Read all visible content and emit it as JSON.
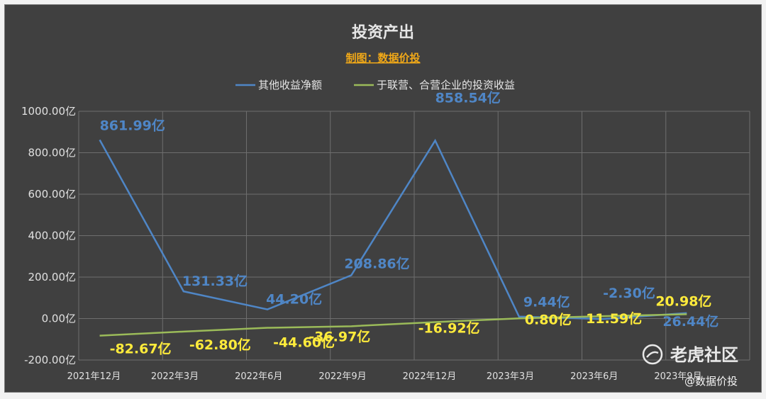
{
  "chart_data": {
    "type": "line",
    "title": "投资产出",
    "subtitle": "制图：数据价投",
    "categories": [
      "2021年12月",
      "2022年3月",
      "2022年6月",
      "2022年9月",
      "2022年12月",
      "2023年3月",
      "2023年6月",
      "2023年9月"
    ],
    "series": [
      {
        "name": "其他收益净额",
        "values": [
          861.99,
          131.33,
          44.2,
          208.86,
          858.54,
          9.44,
          -2.3,
          26.44
        ],
        "labels": [
          "861.99亿",
          "131.33亿",
          "44.20亿",
          "208.86亿",
          "858.54亿",
          "9.44亿",
          "-2.30亿",
          "26.44亿"
        ],
        "color": "#4f86c6"
      },
      {
        "name": "于联营、合营企业的投资收益",
        "values": [
          -82.67,
          -62.8,
          -44.6,
          -36.97,
          -16.92,
          0.8,
          11.59,
          20.98
        ],
        "labels": [
          "-82.67亿",
          "-62.80亿",
          "-44.60亿",
          "-36.97亿",
          "-16.92亿",
          "0.80亿",
          "11.59亿",
          "20.98亿"
        ],
        "color": "#9bbb59"
      }
    ],
    "yticks": [
      "1000.00亿",
      "800.00亿",
      "600.00亿",
      "400.00亿",
      "200.00亿",
      "0.00亿",
      "-200.00亿"
    ],
    "ylim": [
      -200,
      1000
    ],
    "grid": true,
    "legend": "top-center"
  },
  "watermark": {
    "brand": "老虎社区",
    "handle": "@数据价投"
  },
  "colors": {
    "background": "#404040",
    "grid": "#6e6e6e",
    "subtitle": "#f0a818",
    "label_yellow": "#ffeb3b"
  }
}
